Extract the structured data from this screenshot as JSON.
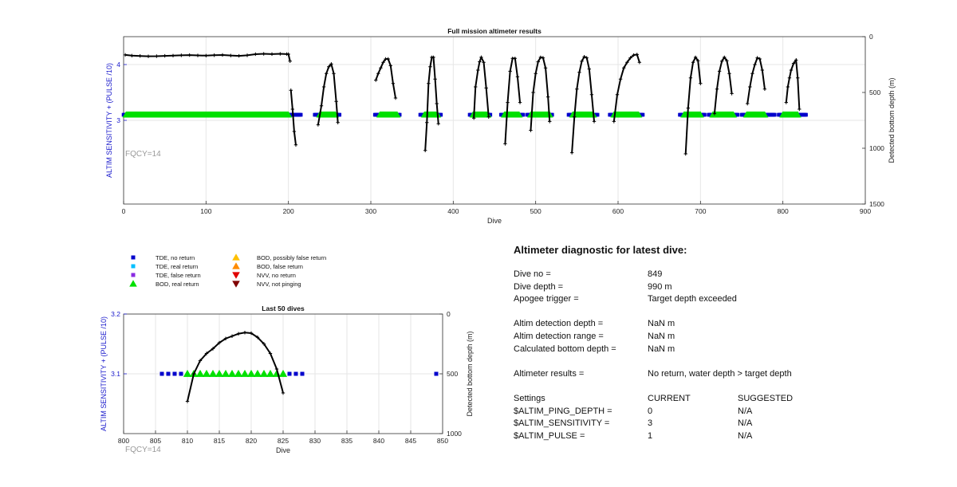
{
  "colors": {
    "tde_no_return": "#0000cc",
    "tde_real_return": "#00bfff",
    "tde_false_return": "#8a2be2",
    "bod_real_return": "#00e000",
    "bod_possibly_false": "#ffc000",
    "bod_false": "#ff8c00",
    "nvv_no_return": "#e00000",
    "nvv_not_pinging": "#800000",
    "left_axis": "#1a1acc",
    "fqcy_text": "#999999"
  },
  "chart_data": [
    {
      "type": "scatter",
      "title": "Full mission altimeter results",
      "xlabel": "Dive",
      "ylabel": "ALTIM SENSITIVITY + (PULSE /10)",
      "ylabel_right": "Detected bottom depth (m)",
      "xlim": [
        0,
        900
      ],
      "ylim_left": [
        1.5,
        4.5
      ],
      "ylim_right_reversed": [
        0,
        1500
      ],
      "xticks": [
        0,
        100,
        200,
        300,
        400,
        500,
        600,
        700,
        800,
        900
      ],
      "yticks_left": [
        3,
        4
      ],
      "yticks_right": [
        0,
        500,
        1000,
        1500
      ],
      "grid": true,
      "annotation": "FQCY=14",
      "tde_no_return_segments": [
        [
          0,
          215
        ],
        [
          232,
          262
        ],
        [
          305,
          335
        ],
        [
          360,
          385
        ],
        [
          420,
          445
        ],
        [
          458,
          485
        ],
        [
          490,
          520
        ],
        [
          540,
          575
        ],
        [
          590,
          630
        ],
        [
          675,
          705
        ],
        [
          710,
          745
        ],
        [
          750,
          790
        ],
        [
          795,
          828
        ]
      ],
      "bod_real_return_segments": [
        [
          3,
          200
        ],
        [
          238,
          257
        ],
        [
          311,
          332
        ],
        [
          365,
          381
        ],
        [
          424,
          442
        ],
        [
          462,
          480
        ],
        [
          494,
          517
        ],
        [
          545,
          570
        ],
        [
          595,
          625
        ],
        [
          680,
          700
        ],
        [
          715,
          740
        ],
        [
          756,
          778
        ],
        [
          800,
          818
        ]
      ],
      "bottom_depth_profiles": [
        {
          "x": [
            2,
            10,
            20,
            30,
            40,
            50,
            60,
            70,
            80,
            90,
            100,
            110,
            120,
            130,
            140,
            150,
            160,
            170,
            180,
            190,
            198,
            200,
            202
          ],
          "depth": [
            163,
            170,
            173,
            176,
            175,
            172,
            170,
            167,
            165,
            168,
            170,
            166,
            164,
            169,
            172,
            167,
            157,
            154,
            156,
            154,
            156,
            157,
            220
          ]
        },
        {
          "x": [
            203,
            205,
            207,
            209
          ],
          "depth": [
            480,
            650,
            850,
            970
          ]
        },
        {
          "x": [
            236,
            240,
            243,
            246,
            249,
            252,
            255,
            258,
            260
          ],
          "depth": [
            790,
            620,
            450,
            330,
            270,
            245,
            330,
            580,
            770
          ]
        },
        {
          "x": [
            306,
            309,
            312,
            315,
            318,
            321,
            324,
            327,
            330
          ],
          "depth": [
            390,
            330,
            280,
            230,
            200,
            200,
            260,
            420,
            550
          ]
        },
        {
          "x": [
            366,
            368,
            370,
            372,
            374,
            376,
            378,
            380,
            382
          ],
          "depth": [
            1020,
            770,
            420,
            270,
            185,
            185,
            380,
            600,
            780
          ]
        },
        {
          "x": [
            425,
            427,
            430,
            432,
            434,
            437,
            440,
            443
          ],
          "depth": [
            730,
            450,
            300,
            225,
            185,
            230,
            460,
            720
          ]
        },
        {
          "x": [
            463,
            466,
            469,
            472,
            475,
            478,
            481
          ],
          "depth": [
            960,
            590,
            310,
            195,
            195,
            360,
            590
          ]
        },
        {
          "x": [
            494,
            497,
            500,
            503,
            506,
            509,
            512,
            515,
            517
          ],
          "depth": [
            840,
            500,
            330,
            225,
            185,
            190,
            280,
            540,
            760
          ]
        },
        {
          "x": [
            544,
            547,
            550,
            553,
            556,
            559,
            562,
            565,
            568,
            571
          ],
          "depth": [
            1040,
            720,
            470,
            320,
            220,
            180,
            190,
            290,
            520,
            760
          ]
        },
        {
          "x": [
            595,
            599,
            603,
            607,
            611,
            615,
            619,
            623,
            626
          ],
          "depth": [
            760,
            520,
            380,
            280,
            230,
            190,
            165,
            160,
            230
          ]
        },
        {
          "x": [
            682,
            685,
            688,
            691,
            694,
            697,
            700
          ],
          "depth": [
            1050,
            640,
            370,
            230,
            185,
            215,
            420
          ]
        },
        {
          "x": [
            717,
            720,
            723,
            726,
            729,
            732,
            735,
            738
          ],
          "depth": [
            690,
            470,
            310,
            220,
            185,
            215,
            330,
            510
          ]
        },
        {
          "x": [
            757,
            760,
            763,
            766,
            769,
            772,
            775,
            778
          ],
          "depth": [
            600,
            450,
            330,
            250,
            190,
            200,
            300,
            470
          ]
        },
        {
          "x": [
            804,
            806,
            808,
            810,
            813,
            816,
            818,
            820
          ],
          "depth": [
            590,
            450,
            370,
            300,
            240,
            210,
            370,
            650
          ]
        }
      ]
    },
    {
      "type": "scatter",
      "title": "Last 50 dives",
      "xlabel": "Dive",
      "ylabel": "ALTIM SENSITIVITY + (PULSE /10)",
      "ylabel_right": "Detected bottom depth (m)",
      "xlim": [
        800,
        850
      ],
      "ylim_left": [
        3.0,
        3.2
      ],
      "ylim_right_reversed": [
        0,
        1000
      ],
      "xticks": [
        800,
        805,
        810,
        815,
        820,
        825,
        830,
        835,
        840,
        845,
        850
      ],
      "yticks_left": [
        3.1,
        3.2
      ],
      "yticks_right": [
        0,
        500,
        1000
      ],
      "grid": true,
      "annotation": "FQCY=14",
      "tde_no_return_x": [
        806,
        807,
        808,
        809,
        826,
        827,
        828,
        849
      ],
      "bod_real_return_x": [
        810,
        811,
        812,
        813,
        814,
        815,
        816,
        817,
        818,
        819,
        820,
        821,
        822,
        823,
        824,
        825
      ],
      "bottom_depth_profile": {
        "x": [
          810,
          811,
          812,
          813,
          814,
          815,
          816,
          817,
          818,
          819,
          820,
          821,
          822,
          823,
          824,
          825
        ],
        "depth": [
          730,
          500,
          390,
          330,
          290,
          240,
          205,
          185,
          165,
          155,
          160,
          195,
          250,
          330,
          460,
          660
        ]
      }
    }
  ],
  "legend": {
    "items": [
      {
        "label": "TDE, no return",
        "shape": "square",
        "color": "#0000cc"
      },
      {
        "label": "TDE, real return",
        "shape": "square",
        "color": "#00bfff"
      },
      {
        "label": "TDE, false return",
        "shape": "square",
        "color": "#8a2be2"
      },
      {
        "label": "BOD, real return",
        "shape": "triangle-up",
        "color": "#00e000"
      },
      {
        "label": "BOD, possibly false return",
        "shape": "triangle-up",
        "color": "#ffc000"
      },
      {
        "label": "BOD, false return",
        "shape": "triangle-up",
        "color": "#ff8c00"
      },
      {
        "label": "NVV, no return",
        "shape": "triangle-down",
        "color": "#e00000"
      },
      {
        "label": "NVV, not pinging",
        "shape": "triangle-down",
        "color": "#800000"
      }
    ]
  },
  "diagnostic": {
    "title": "Altimeter diagnostic for latest dive:",
    "dive_no_label": "Dive no =",
    "dive_no_value": "849",
    "dive_depth_label": "Dive depth =",
    "dive_depth_value": "990 m",
    "apogee_label": "Apogee trigger =",
    "apogee_value": "Target depth exceeded",
    "altim_depth_label": "Altim detection depth =",
    "altim_depth_value": "NaN m",
    "altim_range_label": "Altim detection range =",
    "altim_range_value": "NaN m",
    "calc_bottom_label": "Calculated bottom depth =",
    "calc_bottom_value": "NaN m",
    "results_label": "Altimeter results =",
    "results_value": "No return, water depth > target depth",
    "settings_label": "Settings",
    "current_header": "CURRENT",
    "suggested_header": "SUGGESTED",
    "settings": [
      {
        "name": "$ALTIM_PING_DEPTH =",
        "current": "0",
        "suggested": "N/A"
      },
      {
        "name": "$ALTIM_SENSITIVITY =",
        "current": "3",
        "suggested": "N/A"
      },
      {
        "name": "$ALTIM_PULSE =",
        "current": "1",
        "suggested": "N/A"
      }
    ]
  }
}
